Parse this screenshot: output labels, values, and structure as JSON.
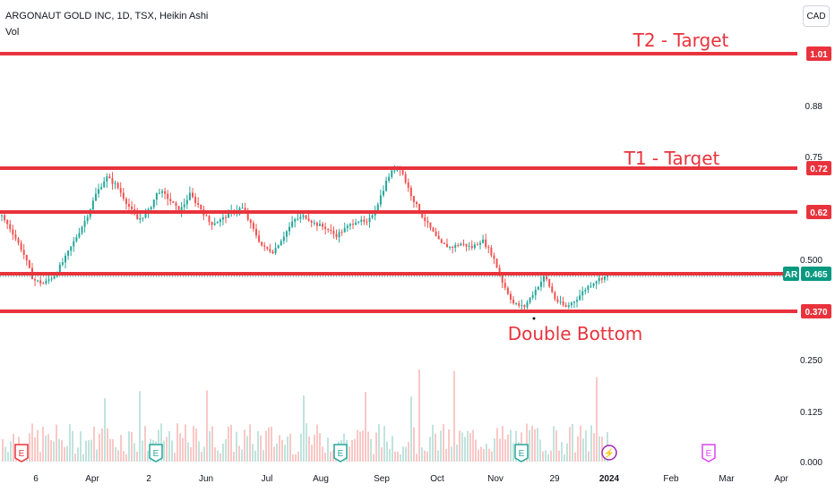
{
  "header": {
    "title": "ARGONAUT GOLD INC, 1D, TSX, Heikin Ashi",
    "volume_label": "Vol",
    "currency": "CAD"
  },
  "chart_data": {
    "type": "candlestick",
    "symbol": "AR",
    "last_price": "0.465",
    "y_ticks": [
      "1.01",
      "0.88",
      "0.75",
      "0.72",
      "0.62",
      "0.500",
      "0.465",
      "0.370",
      "0.250",
      "0.125",
      "0.000"
    ],
    "x_ticks": [
      "6",
      "Apr",
      "2",
      "Jun",
      "Jul",
      "Aug",
      "Sep",
      "Oct",
      "Nov",
      "29",
      "2024",
      "Feb",
      "Mar",
      "Apr"
    ],
    "horizontal_lines": [
      {
        "price": 1.01,
        "label": "1.01"
      },
      {
        "price": 0.72,
        "label": "0.72"
      },
      {
        "price": 0.62,
        "label": "0.62"
      },
      {
        "price": 0.465,
        "label": "0.465"
      },
      {
        "price": 0.37,
        "label": "0.370"
      }
    ],
    "annotations": [
      {
        "text": "T2 - Target",
        "price": 1.01
      },
      {
        "text": "T1 - Target",
        "price": 0.72
      },
      {
        "text": "Double Bottom",
        "price": 0.37
      }
    ],
    "event_markers": [
      "E",
      "E",
      "E",
      "E",
      "⚡",
      "E"
    ],
    "price_path": [
      0.61,
      0.57,
      0.52,
      0.45,
      0.44,
      0.46,
      0.5,
      0.55,
      0.6,
      0.66,
      0.7,
      0.68,
      0.64,
      0.6,
      0.62,
      0.67,
      0.65,
      0.62,
      0.66,
      0.63,
      0.59,
      0.6,
      0.62,
      0.63,
      0.58,
      0.53,
      0.52,
      0.56,
      0.6,
      0.61,
      0.59,
      0.58,
      0.56,
      0.58,
      0.6,
      0.59,
      0.64,
      0.7,
      0.73,
      0.67,
      0.62,
      0.58,
      0.54,
      0.53,
      0.54,
      0.53,
      0.55,
      0.51,
      0.44,
      0.39,
      0.38,
      0.42,
      0.46,
      0.4,
      0.38,
      0.4,
      0.43,
      0.45,
      0.46
    ],
    "colors": {
      "up": "#26a69a",
      "down": "#ef5350",
      "level": "#e8333c",
      "label": "#e8333c",
      "ar": "#089981"
    }
  }
}
